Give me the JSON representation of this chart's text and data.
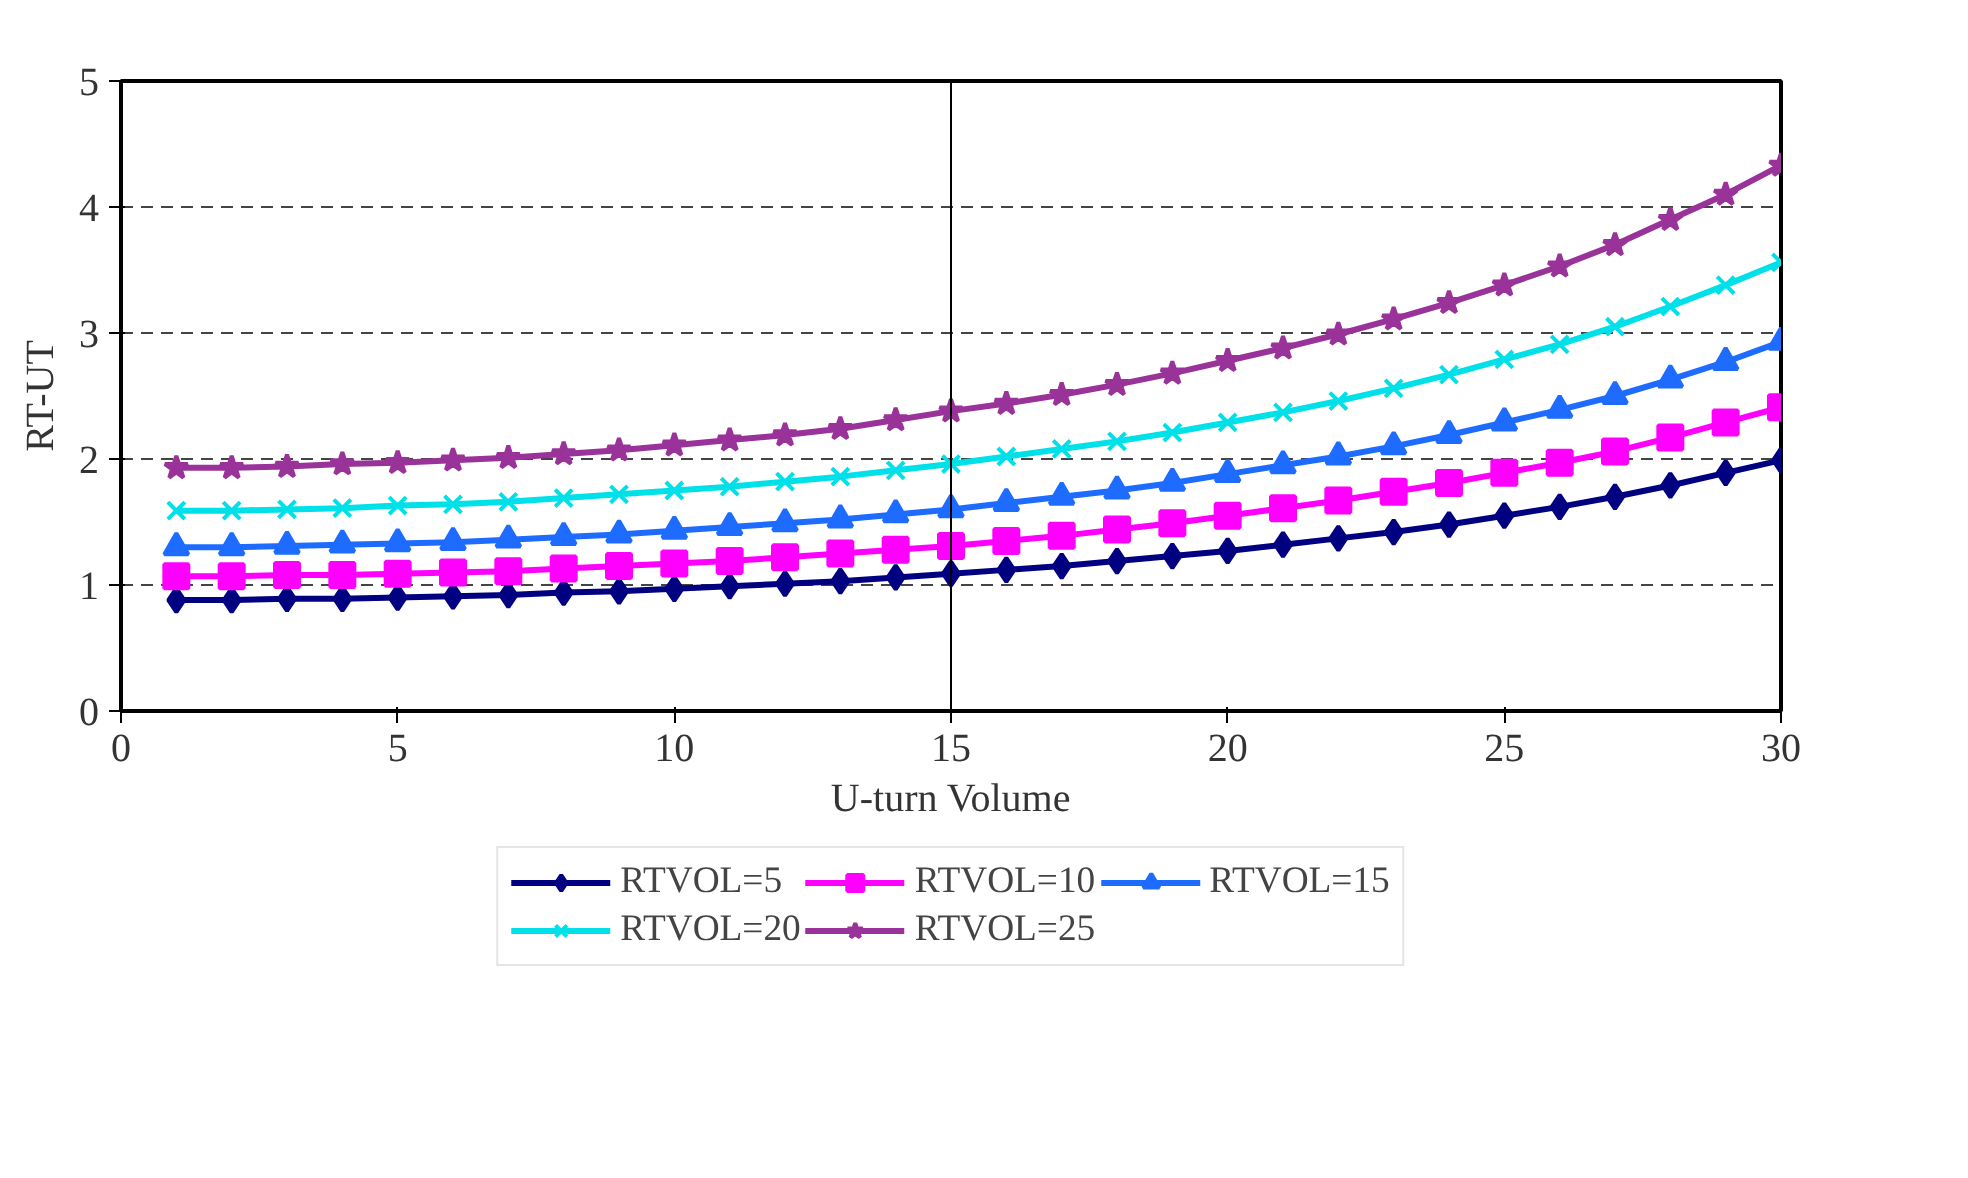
{
  "chart_data": {
    "type": "line",
    "xlabel": "U-turn Volume",
    "ylabel": "RT-UT",
    "x": [
      1,
      2,
      3,
      4,
      5,
      6,
      7,
      8,
      9,
      10,
      11,
      12,
      13,
      14,
      15,
      16,
      17,
      18,
      19,
      20,
      21,
      22,
      23,
      24,
      25,
      26,
      27,
      28,
      29,
      30
    ],
    "series": [
      {
        "name": "RTVOL=5",
        "color": "#000080",
        "marker": "diamond",
        "values": [
          0.88,
          0.88,
          0.89,
          0.89,
          0.9,
          0.91,
          0.92,
          0.94,
          0.95,
          0.97,
          0.99,
          1.01,
          1.03,
          1.06,
          1.09,
          1.12,
          1.15,
          1.19,
          1.23,
          1.27,
          1.32,
          1.37,
          1.42,
          1.48,
          1.55,
          1.62,
          1.7,
          1.79,
          1.89,
          1.99
        ]
      },
      {
        "name": "RTVOL=10",
        "color": "#ff00ff",
        "marker": "square",
        "values": [
          1.07,
          1.07,
          1.08,
          1.08,
          1.09,
          1.1,
          1.11,
          1.13,
          1.15,
          1.17,
          1.19,
          1.22,
          1.25,
          1.28,
          1.31,
          1.35,
          1.39,
          1.44,
          1.49,
          1.55,
          1.61,
          1.67,
          1.74,
          1.81,
          1.89,
          1.97,
          2.06,
          2.17,
          2.29,
          2.41
        ]
      },
      {
        "name": "RTVOL=15",
        "color": "#1e6cff",
        "marker": "triangle",
        "values": [
          1.3,
          1.3,
          1.31,
          1.32,
          1.33,
          1.34,
          1.36,
          1.38,
          1.4,
          1.43,
          1.46,
          1.49,
          1.52,
          1.56,
          1.6,
          1.65,
          1.7,
          1.75,
          1.81,
          1.88,
          1.95,
          2.02,
          2.1,
          2.19,
          2.29,
          2.39,
          2.5,
          2.63,
          2.77,
          2.93
        ]
      },
      {
        "name": "RTVOL=20",
        "color": "#00e0e8",
        "marker": "cross",
        "values": [
          1.59,
          1.59,
          1.6,
          1.61,
          1.63,
          1.64,
          1.66,
          1.69,
          1.72,
          1.75,
          1.78,
          1.82,
          1.86,
          1.91,
          1.96,
          2.02,
          2.08,
          2.14,
          2.21,
          2.29,
          2.37,
          2.46,
          2.56,
          2.67,
          2.79,
          2.91,
          3.05,
          3.21,
          3.38,
          3.56
        ]
      },
      {
        "name": "RTVOL=25",
        "color": "#993399",
        "marker": "star",
        "values": [
          1.93,
          1.93,
          1.94,
          1.96,
          1.97,
          1.99,
          2.01,
          2.04,
          2.07,
          2.11,
          2.15,
          2.19,
          2.24,
          2.31,
          2.38,
          2.44,
          2.51,
          2.59,
          2.68,
          2.78,
          2.88,
          2.99,
          3.11,
          3.24,
          3.38,
          3.53,
          3.7,
          3.9,
          4.1,
          4.33
        ]
      }
    ],
    "xlim": [
      0,
      30
    ],
    "xticks": [
      0,
      5,
      10,
      15,
      20,
      25,
      30
    ],
    "ylim": [
      0,
      5
    ],
    "yticks": [
      0,
      1,
      2,
      3,
      4,
      5
    ],
    "grid": "y",
    "line_style": "solid",
    "legend": "bottom",
    "ref_lines": [
      {
        "axis": "x",
        "value": 15,
        "color": "#000000"
      }
    ]
  }
}
